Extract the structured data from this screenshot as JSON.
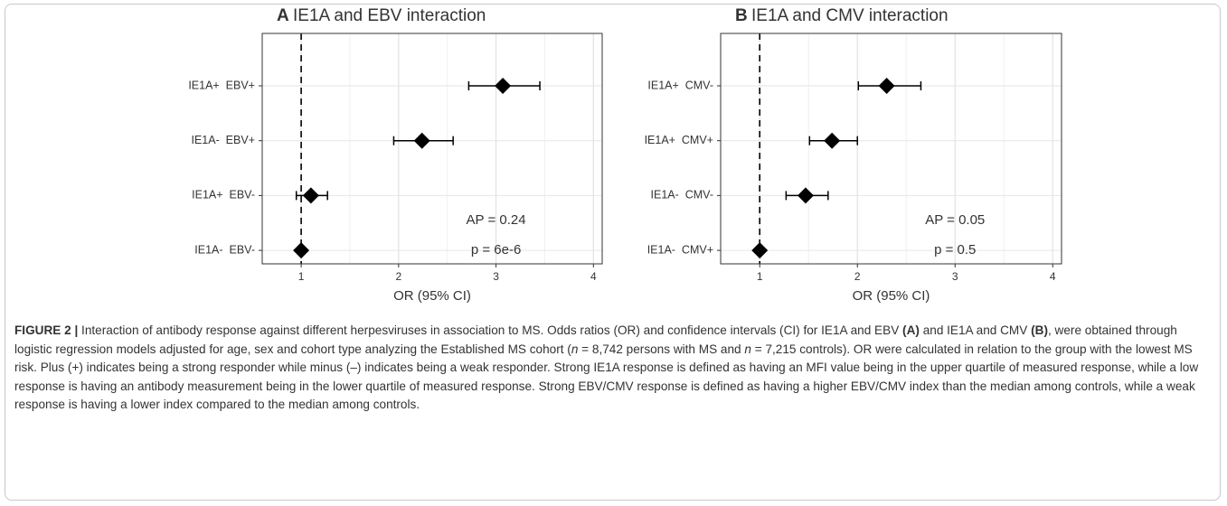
{
  "chart_data": [
    {
      "type": "forest",
      "panel_label": "A",
      "title": "IE1A and EBV interaction",
      "categories": [
        "IE1A+  EBV+",
        "IE1A-  EBV+",
        "IE1A+  EBV-",
        "IE1A-  EBV-"
      ],
      "values": [
        3.07,
        2.24,
        1.1,
        1
      ],
      "lower": [
        2.72,
        1.95,
        0.95,
        null
      ],
      "upper": [
        3.45,
        2.56,
        1.27,
        null
      ],
      "color": "#000000",
      "reference_line": 1,
      "xlim": [
        0.6,
        4.09
      ],
      "xticks": [
        1,
        2,
        3,
        4
      ],
      "x_label": "OR (95% CI)",
      "grid": true,
      "annotations": [
        "AP = 0.24",
        "p = 6e-6"
      ]
    },
    {
      "type": "forest",
      "panel_label": "B",
      "title": "IE1A and CMV interaction",
      "categories": [
        "IE1A+  CMV-",
        "IE1A+  CMV+",
        "IE1A-  CMV-",
        "IE1A-  CMV+"
      ],
      "values": [
        2.3,
        1.74,
        1.47,
        1
      ],
      "lower": [
        2.01,
        1.51,
        1.27,
        null
      ],
      "upper": [
        2.65,
        2.0,
        1.7,
        null
      ],
      "color": "#000000",
      "reference_line": 1,
      "xlim": [
        0.6,
        4.09
      ],
      "xticks": [
        1,
        2,
        3,
        4
      ],
      "x_label": "OR (95% CI)",
      "grid": true,
      "annotations": [
        "AP = 0.05",
        "p = 0.5"
      ]
    }
  ],
  "caption": [
    {
      "text": "FIGURE 2 |",
      "style": "bold"
    },
    {
      "text": " Interaction of antibody response against different herpesviruses in association to MS. Odds ratios (OR) and confidence intervals (CI) for IE1A and EBV ",
      "style": "normal"
    },
    {
      "text": "(A)",
      "style": "bold"
    },
    {
      "text": " and IE1A and CMV ",
      "style": "normal"
    },
    {
      "text": "(B)",
      "style": "bold"
    },
    {
      "text": ", were obtained through logistic regression models adjusted for age, sex and cohort type analyzing the Established MS cohort (",
      "style": "normal"
    },
    {
      "text": "n",
      "style": "italic"
    },
    {
      "text": " = 8,742 persons with MS and ",
      "style": "normal"
    },
    {
      "text": "n",
      "style": "italic"
    },
    {
      "text": " = 7,215 controls). OR were calculated in relation to the group with the lowest MS risk. Plus (+) indicates being a strong responder while minus (–) indicates being a weak responder. Strong IE1A response is defined as having an MFI value being in the upper quartile of measured response, while a low response is having an antibody measurement being in the lower quartile of measured response. Strong EBV/CMV response is defined as having a higher EBV/CMV index than the median among controls, while a weak response is having a lower index compared to the median among controls.",
      "style": "normal"
    }
  ]
}
